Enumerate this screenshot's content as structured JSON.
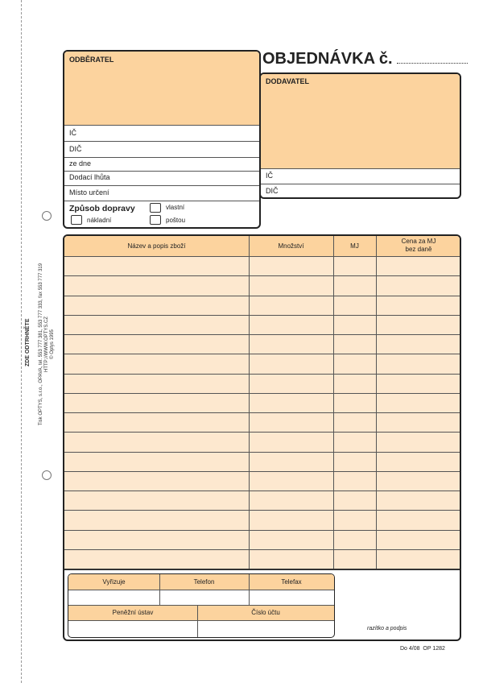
{
  "form": {
    "title": "OBJEDNÁVKA č.",
    "buyer": {
      "heading": "ODBĚRATEL",
      "fields": [
        "IČ",
        "DIČ",
        "ze dne",
        "Dodací lhůta",
        "Místo určení"
      ]
    },
    "transport": {
      "heading": "Způsob dopravy",
      "options": [
        "vlastní",
        "nákladní",
        "poštou"
      ]
    },
    "supplier": {
      "heading": "DODAVATEL",
      "fields": [
        "IČ",
        "DIČ"
      ]
    },
    "table": {
      "columns": [
        "Název a popis zboží",
        "Množství",
        "MJ",
        "Cena za MJ"
      ],
      "price_sub": "bez daně",
      "row_count": 16
    },
    "contact": {
      "headers1": [
        "Vyřizuje",
        "Telefon",
        "Telefax"
      ],
      "headers2": [
        "Peněžní ústav",
        "Číslo účtu"
      ]
    },
    "stamp_label": "razítko a podpis",
    "footer_code": "Do 4/08  OP 1282",
    "tear_label": "ZDE ODTRHNĚTE",
    "printer_line1": "Tisk OPTYS, s.r.o., OPAVA, tel. 553 777 381, 553 777 333, fax 553 777 319",
    "printer_line2": "HTTP://WWW.OPTYS.CZ",
    "printer_line3": "© Optys 1995"
  },
  "colors": {
    "header": "#fcd39e",
    "row": "#fde8cf"
  }
}
